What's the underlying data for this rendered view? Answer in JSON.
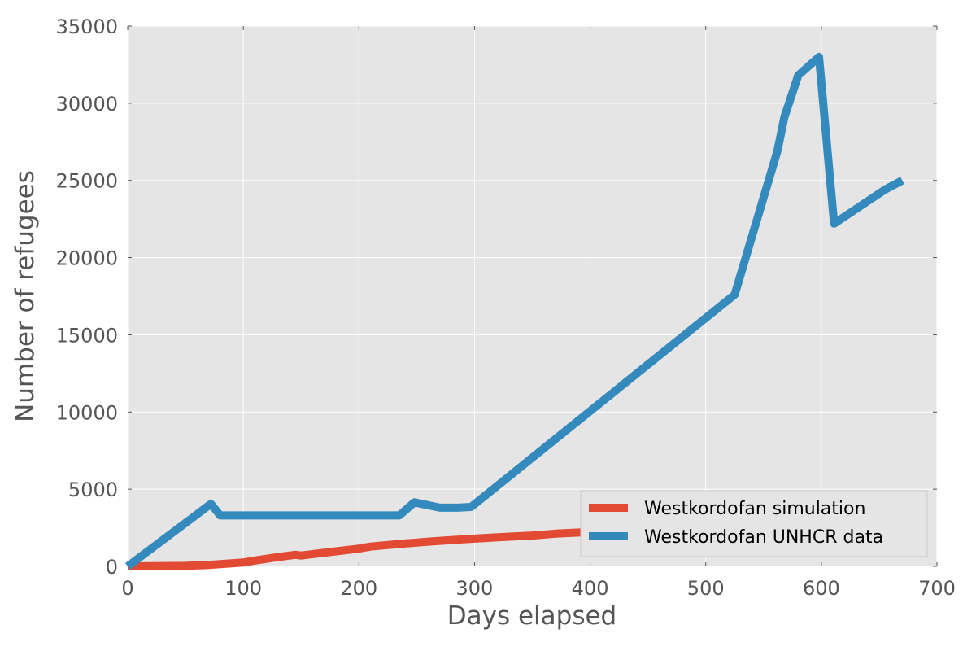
{
  "chart_data": {
    "type": "line",
    "xlabel": "Days elapsed",
    "ylabel": "Number of refugees",
    "xlim": [
      0,
      700
    ],
    "ylim": [
      0,
      35000
    ],
    "xticks": [
      0,
      100,
      200,
      300,
      400,
      500,
      600,
      700
    ],
    "yticks": [
      0,
      5000,
      10000,
      15000,
      20000,
      25000,
      30000,
      35000
    ],
    "grid": true,
    "legend_position": "lower-right",
    "series": [
      {
        "name": "Westkordofan simulation",
        "color": "#e24a33",
        "x": [
          0,
          50,
          70,
          80,
          100,
          110,
          130,
          145,
          150,
          175,
          200,
          210,
          240,
          260,
          290,
          320,
          350,
          370,
          400,
          410
        ],
        "y": [
          0,
          30,
          90,
          140,
          250,
          380,
          600,
          750,
          700,
          930,
          1150,
          1280,
          1480,
          1600,
          1750,
          1880,
          2000,
          2120,
          2230,
          2280
        ]
      },
      {
        "name": "Westkordofan UNHCR data",
        "color": "#348abd",
        "x": [
          0,
          72,
          80,
          235,
          248,
          270,
          285,
          297,
          525,
          562,
          568,
          580,
          598,
          611,
          655,
          670
        ],
        "y": [
          0,
          4050,
          3300,
          3300,
          4150,
          3800,
          3800,
          3850,
          17600,
          26900,
          29100,
          31800,
          33000,
          22200,
          24400,
          25000
        ]
      }
    ]
  }
}
